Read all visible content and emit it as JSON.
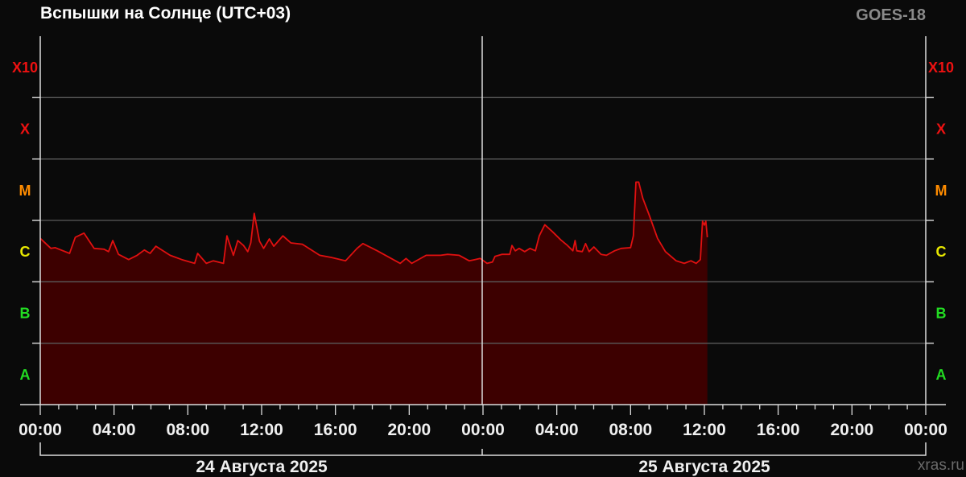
{
  "title": "Вспышки на Солнце (UTC+03)",
  "satellite": "GOES-18",
  "credit": "xras.ru",
  "chart_data": {
    "type": "area",
    "title": "Вспышки на Солнце (UTC+03)",
    "y_scale": "log",
    "ylim": [
      1e-08,
      0.01
    ],
    "y_classes": [
      {
        "label": "A",
        "min": 1e-08,
        "color": "#22dd22"
      },
      {
        "label": "B",
        "min": 1e-07,
        "color": "#22dd22"
      },
      {
        "label": "C",
        "min": 1e-06,
        "color": "#e8e800"
      },
      {
        "label": "M",
        "min": 1e-05,
        "color": "#ff8c00"
      },
      {
        "label": "X",
        "min": 0.0001,
        "color": "#ee1111"
      },
      {
        "label": "X10",
        "min": 0.001,
        "color": "#ee1111"
      }
    ],
    "xlim_hours": [
      0,
      48
    ],
    "x_tick_labels": [
      "00:00",
      "04:00",
      "08:00",
      "12:00",
      "16:00",
      "20:00",
      "00:00",
      "04:00",
      "08:00",
      "12:00",
      "16:00",
      "20:00",
      "00:00"
    ],
    "dates": [
      "24 Августа 2025",
      "25 Августа 2025"
    ],
    "grid": true,
    "line_color": "#e01010",
    "fill_color": "#3d0000",
    "x_hours": [
      0,
      0.58,
      0.81,
      1.59,
      1.9,
      2.37,
      2.92,
      3.46,
      3.7,
      3.93,
      4.24,
      4.79,
      5.25,
      5.64,
      5.95,
      6.27,
      7.04,
      7.67,
      8.37,
      8.53,
      9.0,
      9.38,
      9.93,
      10.12,
      10.47,
      10.71,
      11.02,
      11.25,
      11.41,
      11.6,
      11.88,
      12.11,
      12.42,
      12.66,
      13.15,
      13.59,
      14.21,
      15.15,
      15.77,
      16.55,
      17.17,
      17.49,
      18.27,
      19.51,
      19.83,
      20.14,
      20.92,
      21.7,
      22.08,
      22.71,
      23.25,
      23.56,
      23.85,
      24.22,
      24.51,
      24.65,
      25.02,
      25.45,
      25.57,
      25.75,
      25.96,
      26.26,
      26.55,
      26.84,
      27.05,
      27.35,
      27.78,
      28.22,
      28.58,
      28.87,
      28.99,
      29.09,
      29.38,
      29.56,
      29.75,
      30.01,
      30.4,
      30.69,
      31.13,
      31.49,
      32.0,
      32.15,
      32.29,
      32.44,
      32.66,
      33.02,
      33.46,
      33.89,
      34.47,
      34.91,
      35.27,
      35.56,
      35.78,
      35.9,
      36.0,
      36.08,
      36.16
    ],
    "flux": [
      5.1e-06,
      3.5e-06,
      3.6e-06,
      2.9e-06,
      5.3e-06,
      6.2e-06,
      3.5e-06,
      3.4e-06,
      3.1e-06,
      4.7e-06,
      2.8e-06,
      2.3e-06,
      2.7e-06,
      3.3e-06,
      2.9e-06,
      3.8e-06,
      2.7e-06,
      2.3e-06,
      2e-06,
      2.9e-06,
      2e-06,
      2.2e-06,
      2e-06,
      5.6e-06,
      2.7e-06,
      4.7e-06,
      3.9e-06,
      3.1e-06,
      4.3e-06,
      1.3e-05,
      4.6e-06,
      3.5e-06,
      5e-06,
      3.8e-06,
      5.6e-06,
      4.3e-06,
      4.1e-06,
      2.7e-06,
      2.5e-06,
      2.2e-06,
      3.5e-06,
      4.2e-06,
      3.2e-06,
      2e-06,
      2.4e-06,
      2e-06,
      2.7e-06,
      2.7e-06,
      2.8e-06,
      2.7e-06,
      2.2e-06,
      2.3e-06,
      2.4e-06,
      2e-06,
      2.1e-06,
      2.6e-06,
      2.8e-06,
      2.8e-06,
      3.9e-06,
      3.2e-06,
      3.5e-06,
      3.1e-06,
      3.5e-06,
      3.2e-06,
      5.6e-06,
      8.5e-06,
      6.5e-06,
      4.8e-06,
      3.9e-06,
      3.2e-06,
      4.7e-06,
      3.2e-06,
      3.1e-06,
      4.2e-06,
      3.1e-06,
      3.7e-06,
      2.8e-06,
      2.7e-06,
      3.2e-06,
      3.5e-06,
      3.6e-06,
      5.6e-06,
      4.2e-05,
      4.2e-05,
      2.3e-05,
      1.2e-05,
      5.1e-06,
      3.1e-06,
      2.2e-06,
      2e-06,
      2.2e-06,
      2e-06,
      2.3e-06,
      9.7e-06,
      8.4e-06,
      9.7e-06,
      5.3e-06
    ]
  }
}
